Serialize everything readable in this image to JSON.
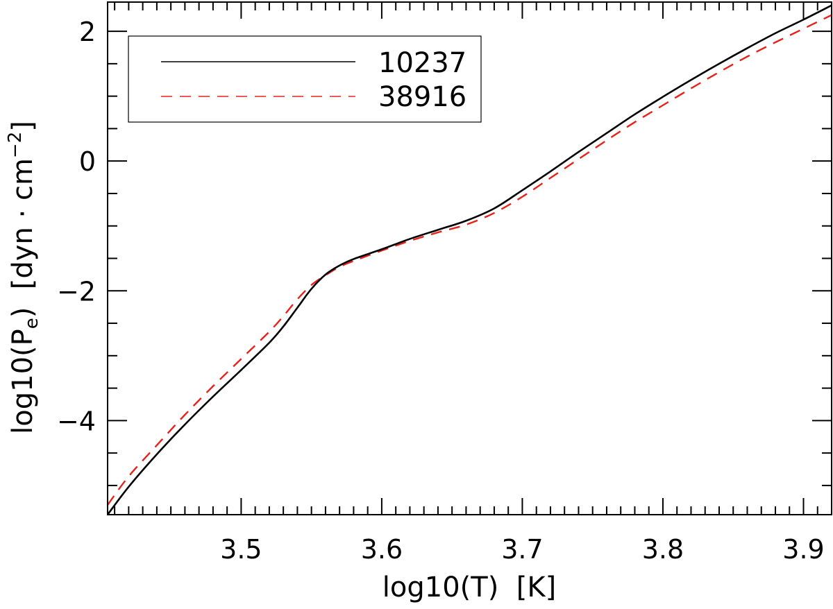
{
  "chart_data": {
    "type": "line",
    "xlabel": "log10(T)  [K]",
    "ylabel": {
      "prefix": "log10(P",
      "sub": "e",
      "middle": ")  [dyn · cm",
      "sup": "−2",
      "suffix": "]"
    },
    "xlim": [
      3.405,
      3.92
    ],
    "ylim": [
      -5.45,
      2.45
    ],
    "x_ticks": [
      3.5,
      3.6,
      3.7,
      3.8,
      3.9
    ],
    "x_tick_labels": [
      "3.5",
      "3.6",
      "3.7",
      "3.8",
      "3.9"
    ],
    "x_minor_step": 0.01,
    "y_ticks": [
      -4,
      -2,
      0,
      2
    ],
    "y_tick_labels": [
      "−4",
      "−2",
      "0",
      "2"
    ],
    "y_minor_step": 0.5,
    "grid": false,
    "legend_position": "top-left",
    "series": [
      {
        "name": "10237",
        "color": "#000000",
        "dash": "solid",
        "x": [
          3.405,
          3.42,
          3.44,
          3.46,
          3.48,
          3.5,
          3.52,
          3.53,
          3.54,
          3.55,
          3.56,
          3.57,
          3.58,
          3.6,
          3.62,
          3.64,
          3.66,
          3.68,
          3.7,
          3.72,
          3.74,
          3.76,
          3.78,
          3.8,
          3.82,
          3.84,
          3.86,
          3.88,
          3.9,
          3.92
        ],
        "y": [
          -5.45,
          -5.02,
          -4.52,
          -4.06,
          -3.63,
          -3.22,
          -2.8,
          -2.55,
          -2.26,
          -1.97,
          -1.75,
          -1.61,
          -1.51,
          -1.36,
          -1.2,
          -1.06,
          -0.92,
          -0.73,
          -0.45,
          -0.16,
          0.14,
          0.43,
          0.72,
          0.99,
          1.25,
          1.5,
          1.74,
          1.97,
          2.18,
          2.4
        ]
      },
      {
        "name": "38916",
        "color": "#e8221b",
        "dash": "dashed",
        "x": [
          3.405,
          3.42,
          3.44,
          3.46,
          3.48,
          3.5,
          3.52,
          3.53,
          3.54,
          3.55,
          3.56,
          3.57,
          3.58,
          3.6,
          3.62,
          3.64,
          3.66,
          3.68,
          3.7,
          3.72,
          3.74,
          3.76,
          3.78,
          3.8,
          3.82,
          3.84,
          3.86,
          3.88,
          3.9,
          3.92
        ],
        "y": [
          -5.3,
          -4.86,
          -4.38,
          -3.91,
          -3.47,
          -3.05,
          -2.63,
          -2.39,
          -2.13,
          -1.91,
          -1.76,
          -1.63,
          -1.54,
          -1.38,
          -1.23,
          -1.1,
          -0.98,
          -0.8,
          -0.55,
          -0.26,
          0.03,
          0.32,
          0.6,
          0.86,
          1.12,
          1.37,
          1.61,
          1.83,
          2.04,
          2.25
        ]
      }
    ]
  }
}
